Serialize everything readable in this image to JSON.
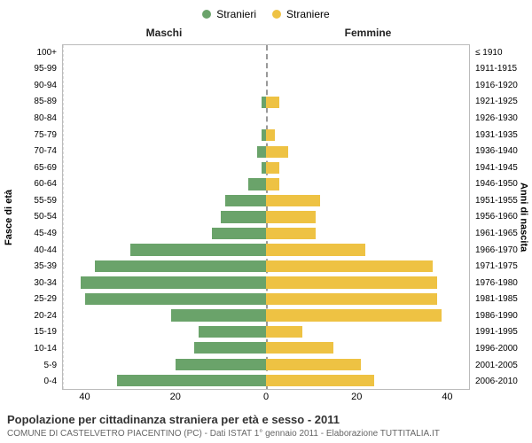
{
  "chart": {
    "type": "population-pyramid",
    "background_color": "#ffffff",
    "border_color": "#bbbbbb",
    "grid_color": "#dddddd",
    "center_line_color": "#999999",
    "tick_fontsize": 11,
    "label_fontsize": 10,
    "legend": {
      "male": {
        "label": "Stranieri",
        "color": "#6aa36a"
      },
      "female": {
        "label": "Straniere",
        "color": "#eec243"
      }
    },
    "side_headers": {
      "left": "Maschi",
      "right": "Femmine",
      "fontsize": 12,
      "color": "#222222",
      "weight": "bold"
    },
    "y_axis": {
      "left_title": "Fasce di età",
      "right_title": "Anni di nascita",
      "title_fontsize": 11,
      "left_labels": [
        "0-4",
        "5-9",
        "10-14",
        "15-19",
        "20-24",
        "25-29",
        "30-34",
        "35-39",
        "40-44",
        "45-49",
        "50-54",
        "55-59",
        "60-64",
        "65-69",
        "70-74",
        "75-79",
        "80-84",
        "85-89",
        "90-94",
        "95-99",
        "100+"
      ],
      "right_labels": [
        "2006-2010",
        "2001-2005",
        "1996-2000",
        "1991-1995",
        "1986-1990",
        "1981-1985",
        "1976-1980",
        "1971-1975",
        "1966-1970",
        "1961-1965",
        "1956-1960",
        "1951-1955",
        "1946-1950",
        "1941-1945",
        "1936-1940",
        "1931-1935",
        "1926-1930",
        "1921-1925",
        "1916-1920",
        "1911-1915",
        "≤ 1910"
      ]
    },
    "x_axis": {
      "max": 45,
      "ticks": [
        -40,
        -20,
        0,
        20,
        40
      ],
      "tick_labels": [
        "40",
        "20",
        "0",
        "20",
        "40"
      ]
    },
    "series": {
      "male": [
        33,
        20,
        16,
        15,
        21,
        40,
        41,
        38,
        30,
        12,
        10,
        9,
        4,
        1,
        2,
        1,
        0,
        1,
        0,
        0,
        0
      ],
      "female": [
        24,
        21,
        15,
        8,
        39,
        38,
        38,
        37,
        22,
        11,
        11,
        12,
        3,
        3,
        5,
        2,
        0,
        3,
        0,
        0,
        0
      ]
    },
    "bar_height_ratio": 0.72
  },
  "footer": {
    "title": "Popolazione per cittadinanza straniera per età e sesso - 2011",
    "subtitle": "COMUNE DI CASTELVETRO PIACENTINO (PC) - Dati ISTAT 1° gennaio 2011 - Elaborazione TUTTITALIA.IT",
    "title_fontsize": 13,
    "subtitle_fontsize": 10,
    "title_color": "#333333",
    "subtitle_color": "#666666"
  }
}
